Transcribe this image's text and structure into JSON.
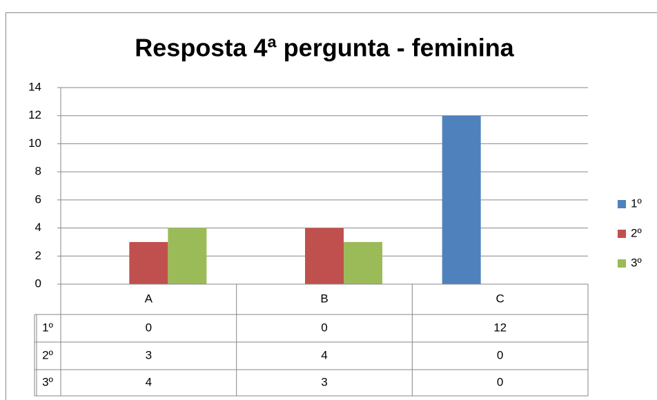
{
  "chart_data": {
    "type": "bar",
    "title": "Resposta 4ª pergunta - feminina",
    "categories": [
      "A",
      "B",
      "C"
    ],
    "series": [
      {
        "name": "1º",
        "color": "#4f81bd",
        "values": [
          0,
          0,
          12
        ]
      },
      {
        "name": "2º",
        "color": "#c0504d",
        "values": [
          3,
          4,
          0
        ]
      },
      {
        "name": "3º",
        "color": "#9bbb59",
        "values": [
          4,
          3,
          0
        ]
      }
    ],
    "ylim": [
      0,
      14
    ],
    "yticks": [
      0,
      2,
      4,
      6,
      8,
      10,
      12,
      14
    ],
    "grid": true,
    "legend": "right",
    "data_table": true
  }
}
